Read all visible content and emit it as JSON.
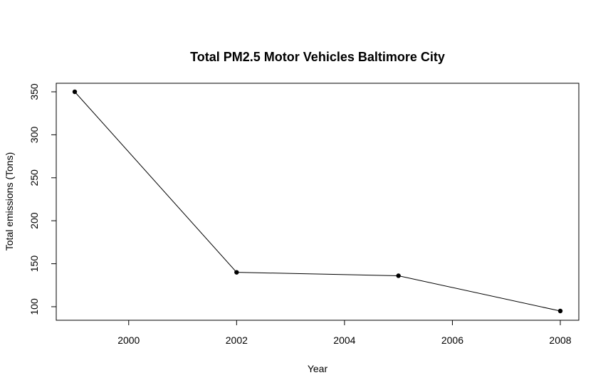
{
  "chart_data": {
    "type": "line",
    "title": "Total PM2.5 Motor Vehicles Baltimore City",
    "xlabel": "Year",
    "ylabel": "Total emissions (Tons)",
    "x": [
      1999,
      2002,
      2005,
      2008
    ],
    "series": [
      {
        "values": [
          350,
          140,
          136,
          95
        ]
      }
    ],
    "xlim": [
      1999,
      2008
    ],
    "ylim": [
      95,
      350
    ],
    "xticks": [
      2000,
      2002,
      2004,
      2006,
      2008
    ],
    "yticks": [
      100,
      150,
      200,
      250,
      300,
      350
    ],
    "grid": false,
    "line_color": "#000000",
    "marker_color": "#000000"
  }
}
